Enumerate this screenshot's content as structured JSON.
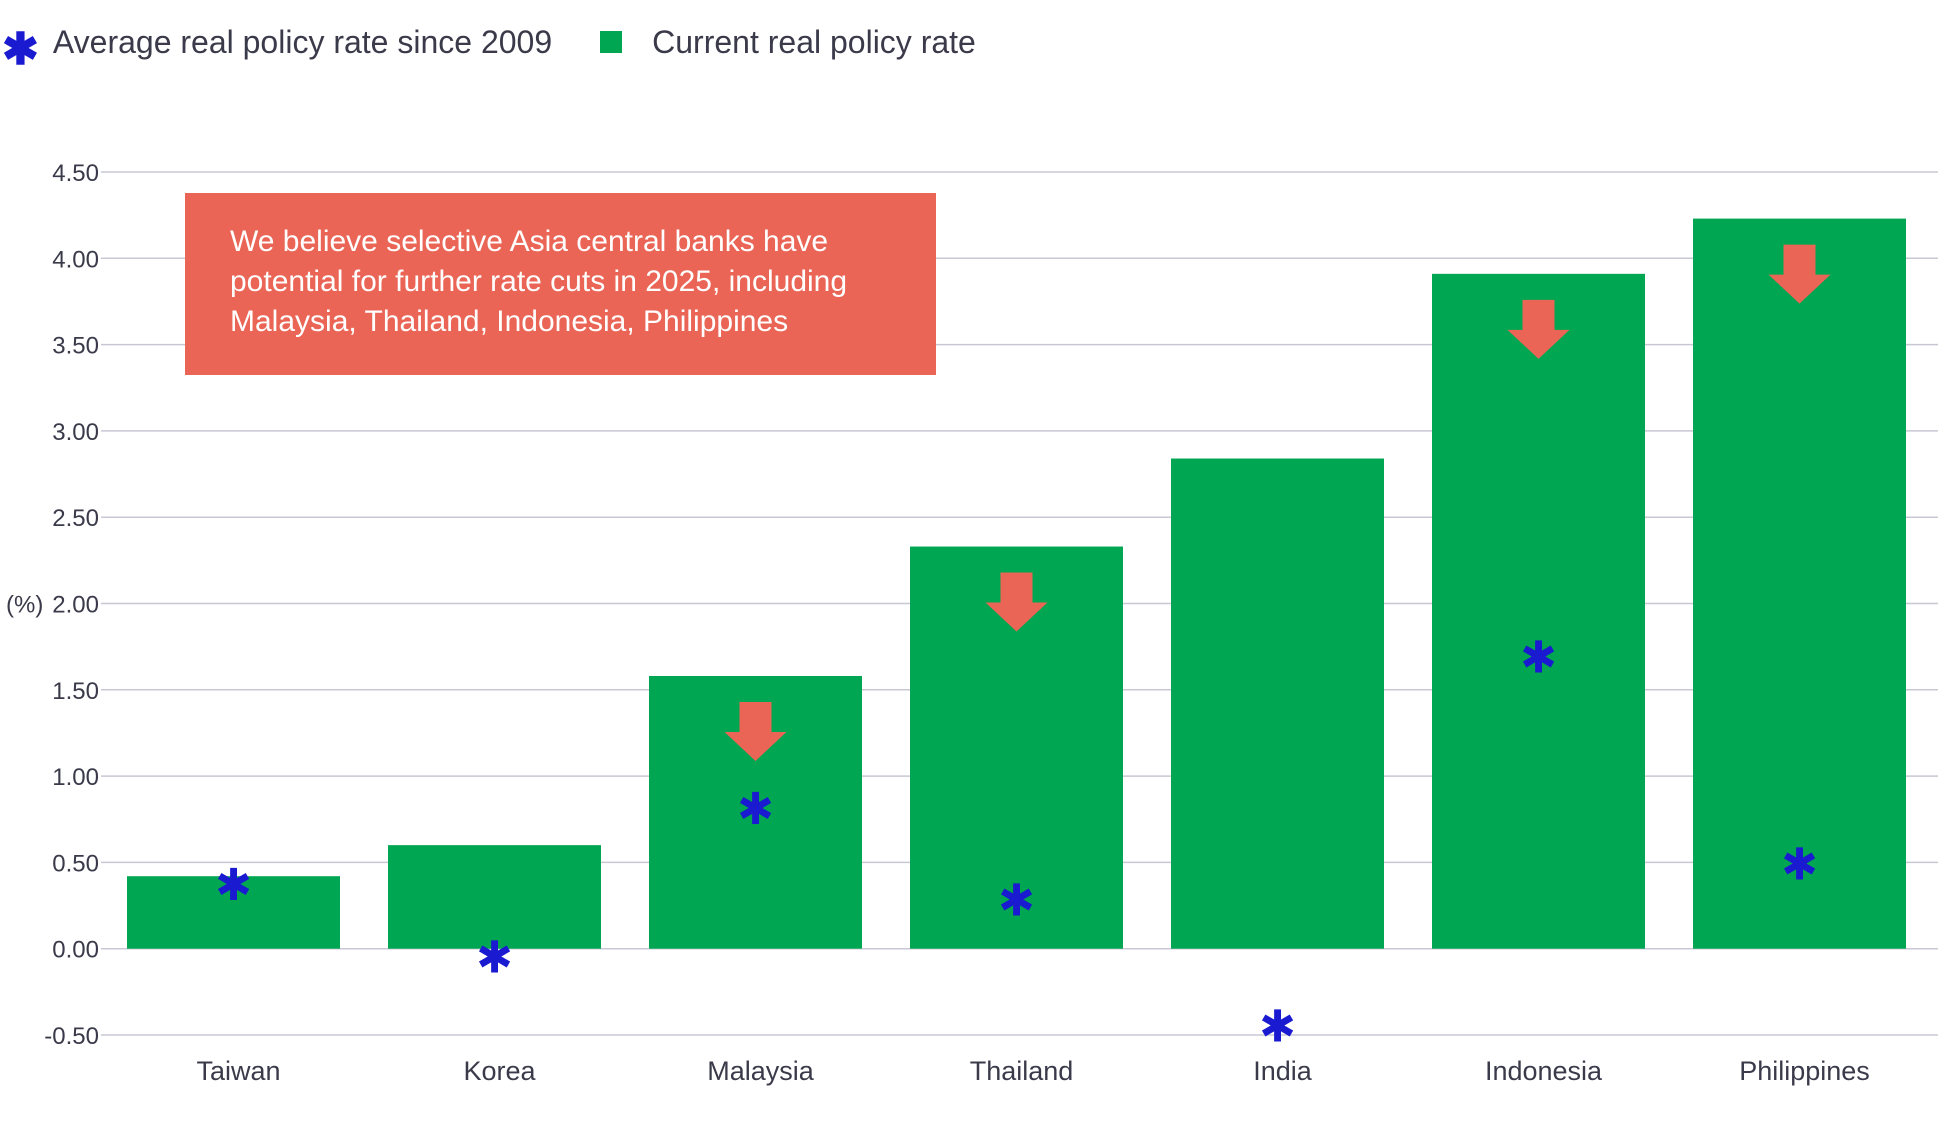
{
  "legend": {
    "average_label": "Average real policy rate since 2009",
    "current_label": "Current real policy rate"
  },
  "callout": {
    "text": "We believe selective Asia central banks have potential for further rate cuts in 2025, including Malaysia, Thailand, Indonesia, Philippines"
  },
  "colors": {
    "bar": "#00a651",
    "marker": "#1a1ad0",
    "arrow": "#ea6555",
    "grid": "#c8c8d4"
  },
  "chart_data": {
    "type": "bar",
    "ylabel": "(%)",
    "ylim": [
      -0.5,
      4.5
    ],
    "yticks": [
      "-0.50",
      "0.00",
      "0.50",
      "1.00",
      "1.50",
      "2.00",
      "2.50",
      "3.00",
      "3.50",
      "4.00",
      "4.50"
    ],
    "grid": true,
    "legend_position": "top-left",
    "categories": [
      "Taiwan",
      "Korea",
      "Malaysia",
      "Thailand",
      "India",
      "Indonesia",
      "Philippines"
    ],
    "series": [
      {
        "name": "Current real policy rate",
        "type": "bar",
        "values": [
          0.42,
          0.6,
          1.58,
          2.33,
          2.84,
          3.91,
          4.23
        ]
      },
      {
        "name": "Average real policy rate since 2009",
        "type": "marker",
        "marker": "asterisk",
        "values": [
          0.38,
          -0.04,
          0.82,
          0.29,
          -0.44,
          1.7,
          0.5
        ]
      }
    ],
    "rate_cut_arrows": [
      "Malaysia",
      "Thailand",
      "Indonesia",
      "Philippines"
    ]
  }
}
